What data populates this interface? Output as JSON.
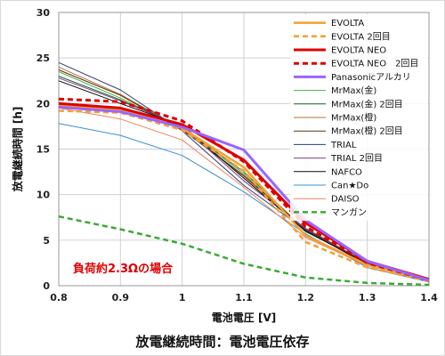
{
  "chart_data": {
    "type": "line",
    "title": "放電継続時間：電池電圧依存",
    "xlabel": "電池電圧 [V]",
    "ylabel": "放電継続時間 [h]",
    "xlim": [
      0.8,
      1.4
    ],
    "ylim": [
      0,
      30
    ],
    "x_ticks": [
      "0.8",
      "0.9",
      "1",
      "1.1",
      "1.2",
      "1.3",
      "1.4"
    ],
    "y_ticks": [
      "0",
      "5",
      "10",
      "15",
      "20",
      "25",
      "30"
    ],
    "grid": "on",
    "legend_position": "top-right",
    "annotation": "負荷約2.3Ωの場合",
    "x": [
      0.8,
      0.9,
      1.0,
      1.1,
      1.2,
      1.3,
      1.4
    ],
    "series": [
      {
        "name": "EVOLTA",
        "color": "#f4a030",
        "width": 2.5,
        "dash": "",
        "values": [
          19.8,
          19.3,
          17.3,
          13.0,
          5.5,
          2.3,
          0.6
        ]
      },
      {
        "name": "EVOLTA 2回目",
        "color": "#f4a030",
        "width": 2.5,
        "dash": "6,4",
        "values": [
          19.2,
          19.0,
          17.1,
          12.6,
          4.8,
          2.0,
          0.5
        ]
      },
      {
        "name": "EVOLTA NEO",
        "color": "#dd0000",
        "width": 3,
        "dash": "",
        "values": [
          20.0,
          19.5,
          17.7,
          13.8,
          6.9,
          2.7,
          0.7
        ]
      },
      {
        "name": "EVOLTA NEO　2回目",
        "color": "#dd0000",
        "width": 3,
        "dash": "6,4",
        "values": [
          20.5,
          20.2,
          18.1,
          13.6,
          6.5,
          2.5,
          0.6
        ]
      },
      {
        "name": "Panasonicアルカリ",
        "color": "#9966ff",
        "width": 3,
        "dash": "",
        "values": [
          19.6,
          19.1,
          17.4,
          14.9,
          7.2,
          2.7,
          0.6
        ]
      },
      {
        "name": "MrMax(金)",
        "color": "#4caf50",
        "width": 1,
        "dash": "",
        "values": [
          23.5,
          20.6,
          17.3,
          12.3,
          5.9,
          2.6,
          0.5
        ]
      },
      {
        "name": "MrMax(金) 2回目",
        "color": "#1b5e20",
        "width": 1,
        "dash": "",
        "values": [
          23.0,
          20.4,
          17.4,
          12.5,
          6.1,
          2.6,
          0.5
        ]
      },
      {
        "name": "MrMax(橙)",
        "color": "#b07030",
        "width": 1,
        "dash": "",
        "values": [
          24.0,
          21.0,
          17.2,
          12.0,
          6.0,
          2.4,
          0.5
        ]
      },
      {
        "name": "MrMax(橙) 2回目",
        "color": "#5a3010",
        "width": 1,
        "dash": "",
        "values": [
          23.7,
          20.9,
          17.1,
          12.1,
          6.2,
          2.5,
          0.5
        ]
      },
      {
        "name": "TRIAL",
        "color": "#2a3d7a",
        "width": 1,
        "dash": "",
        "values": [
          24.5,
          21.5,
          17.0,
          11.0,
          6.1,
          2.3,
          0.4
        ]
      },
      {
        "name": "TRIAL 2回目",
        "color": "#7a3d8f",
        "width": 1,
        "dash": "",
        "values": [
          22.8,
          20.3,
          17.5,
          11.5,
          6.3,
          2.5,
          0.5
        ]
      },
      {
        "name": "NAFCO",
        "color": "#0a0a0a",
        "width": 1,
        "dash": "",
        "values": [
          22.5,
          20.0,
          17.6,
          11.8,
          6.0,
          2.4,
          0.5
        ]
      },
      {
        "name": "Can★Do",
        "color": "#3a8fcf",
        "width": 1,
        "dash": "",
        "values": [
          17.8,
          16.5,
          14.3,
          10.3,
          5.7,
          2.0,
          0.4
        ]
      },
      {
        "name": "DAISO",
        "color": "#f08060",
        "width": 1,
        "dash": "",
        "values": [
          19.5,
          18.3,
          16.0,
          10.8,
          5.3,
          2.2,
          0.5
        ]
      },
      {
        "name": "マンガン",
        "color": "#3aaa35",
        "width": 2.5,
        "dash": "6,4",
        "values": [
          7.6,
          6.2,
          4.6,
          2.4,
          0.9,
          0.3,
          0.1
        ]
      }
    ]
  }
}
